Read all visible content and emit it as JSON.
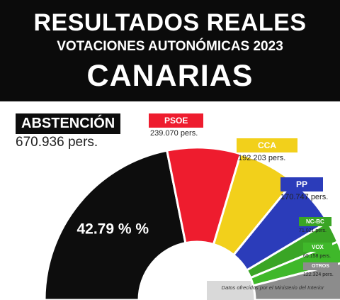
{
  "header": {
    "title": "RESULTADOS REALES",
    "subtitle": "VOTACIONES AUTONÓMICAS 2023",
    "region": "CANARIAS"
  },
  "chart_data": {
    "type": "pie",
    "variant": "semicircle",
    "categories": [
      "ABSTENCIÓN",
      "PSOE",
      "CCA",
      "PP",
      "NC-BC",
      "VOX",
      "OTROS"
    ],
    "values": [
      670936,
      239070,
      192203,
      170747,
      71021,
      69158,
      122324
    ],
    "value_labels": [
      "670.936 pers.",
      "239.070 pers.",
      "192.203 pers.",
      "170.747 pers.",
      "71.021 pers.",
      "69.158 pers.",
      "122.324 pers."
    ],
    "colors": [
      "#0d0d0d",
      "#ee1c2e",
      "#f2d01b",
      "#2b3cba",
      "#3aa525",
      "#3fb82a",
      "#8c8c8c"
    ],
    "slice_labels": [
      "42.79 % %",
      "",
      "",
      "",
      "",
      "",
      ""
    ],
    "source": "Datos ofrecidos por el Ministerio del Interior"
  }
}
